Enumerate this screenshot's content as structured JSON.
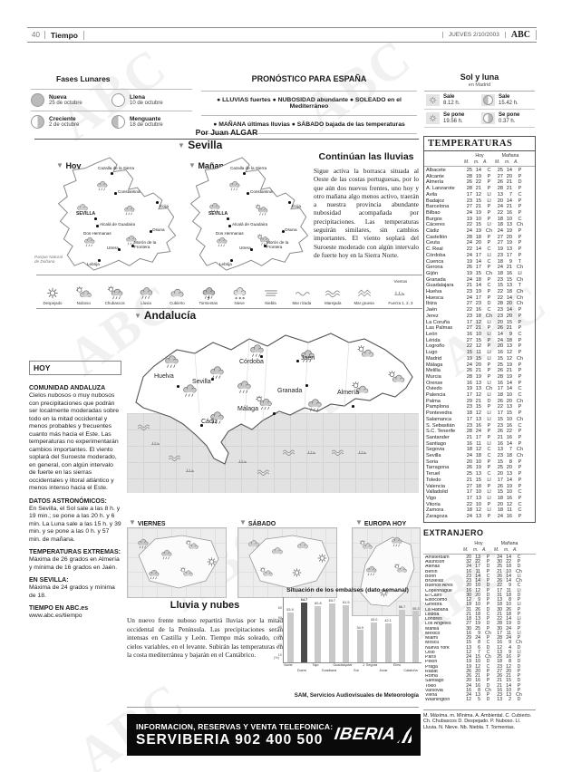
{
  "header": {
    "page_number": "40",
    "section": "Tiempo",
    "date": "JUEVES 2/10/2003",
    "brand": "ABC"
  },
  "lunar": {
    "title": "Fases Lunares",
    "phases": [
      {
        "name": "Nueva",
        "date": "25 de octubre"
      },
      {
        "name": "Llena",
        "date": "10 de octubre"
      },
      {
        "name": "Creciente",
        "date": "2 de octubre"
      },
      {
        "name": "Menguante",
        "date": "18 de octubre"
      }
    ]
  },
  "forecast": {
    "title": "PRONÓSTICO PARA ESPAÑA",
    "line1": "● LLUVIAS fuertes  ● NUBOSIDAD abundante  ● SOLEADO en el Mediterráneo",
    "line2": "● MAÑANA últimas lluvias  ● SÁBADO bajada de las temperaturas"
  },
  "sun_moon": {
    "title": "Sol y luna",
    "subtitle": "en Madrid",
    "sun_rise_label": "Sale",
    "sun_rise": "8.12 h.",
    "moon_rise_label": "Sale",
    "moon_rise": "15.42 h.",
    "sun_set_label": "Se pone",
    "sun_set": "19.56 h.",
    "moon_set_label": "Se pone",
    "moon_set": "0.37 h."
  },
  "byline": "Por Juan ALGAR",
  "sevilla": {
    "title": "Sevilla",
    "today_label": "Hoy",
    "tomorrow_label": "Mañana",
    "cities": [
      "Cazalla de la Sierra",
      "Constantina",
      "SEVILLA",
      "Alcalá de Guadaira",
      "Dos Hermanas",
      "Écija",
      "Osuna",
      "Morón de la Frontera",
      "Utrera",
      "Lebrija"
    ],
    "park_label": "Parque Natural de Doñana"
  },
  "article": {
    "title": "Continúan las lluvias",
    "body": "Sigue activa la borrasca situada al Oeste de las costas portuguesas, por lo que aún dos nuevos frentes, uno hoy y otro mañana algo menos activo, traerán a nuestra provincia abundante nubosidad acompañada por precipitaciones. Las temperaturas seguirán similares, sin cambios importantes. El viento soplará del Suroeste moderado con algún intervalo de fuerte hoy en la Sierra Norte."
  },
  "legend": {
    "items": [
      "Despejado",
      "Nuboso",
      "Chubascos",
      "Lluvia",
      "Cubierto",
      "Tormentas",
      "Nieve",
      "Niebla",
      "Mar rizada",
      "Marejada",
      "Mar gruesa"
    ],
    "wind_top": "Vientos",
    "wind_label": "Fuerza 1, 2, 3"
  },
  "andalucia": {
    "title": "Andalucía",
    "cities": [
      "Huelva",
      "Sevilla",
      "Córdoba",
      "Jaén",
      "Granada",
      "Almería",
      "Cádiz",
      "Málaga"
    ]
  },
  "hoy_column": {
    "title": "HOY",
    "sections": [
      {
        "heading": "COMUNIDAD ANDALUZA",
        "body": "Cielos nubosos o muy nubosos con precipitaciones que podrán ser localmente moderadas sobre todo en la mitad occidental y menos probables y frecuentes cuanto más hacia el Este. Las temperaturas no experimentarán cambios importantes. El viento soplará del Suroeste moderado, en general, con algún intervalo de fuerte en las sierras occidentales y litoral atlántico y menos intenso hacia el Este."
      },
      {
        "heading": "DATOS ASTRONÓMICOS:",
        "body": "En Sevilla, el Sol sale a las 8 h. y 19 min.; se pone a las 20 h. y 6 min. La Luna sale a las 15 h. y 39 min. y se pone a las 0 h. y 57 min. de mañana."
      },
      {
        "heading": "TEMPERATURAS EXTREMAS:",
        "body": "Máxima de 26 grados en Almería y mínima de 16 grados en Jaén."
      },
      {
        "heading": "EN SEVILLA:",
        "body": "Máxima de 24 grados y mínima de 18."
      },
      {
        "heading": "TIEMPO EN ABC.es",
        "body": "www.abc.es/tiempo"
      }
    ]
  },
  "mini_maps": [
    "VIERNES",
    "SÁBADO",
    "EUROPA HOY"
  ],
  "rain_article": {
    "title": "Lluvia y nubes",
    "body": "Un nuevo frente nuboso repartirá lluvias por la mitad occidental de la Península. Las precipitaciones serán intensas en Castilla y León. Tiempo más soleado, con cielos variables, en el levante. Subirán las temperaturas en la costa mediterránea y bajarán en el Cantábrico.",
    "credit": "SAM, Servicios Audiovisuales de Meteorología"
  },
  "chart_data": {
    "type": "bar",
    "title": "Situación de los embalses (dato semanal)",
    "categories": [
      "Norte",
      "Duero",
      "Tajo",
      "Guadiana",
      "Guadalquivir",
      "Sur",
      "J. Segura",
      "Júcar",
      "Ebro",
      "Cataluña"
    ],
    "values": [
      53.9,
      64.7,
      60.8,
      63.7,
      61.5,
      34.9,
      43.0,
      42.1,
      56.7,
      55.3
    ],
    "highlight_index": 1,
    "unit_label": "(%)",
    "yticks": [
      10,
      20,
      30,
      40,
      50,
      60
    ],
    "ylim": [
      0,
      70
    ],
    "xlabel": "",
    "ylabel": "%"
  },
  "temperaturas": {
    "title": "TEMPERATURAS",
    "group_today": "Hoy",
    "group_tomorrow": "Mañana",
    "cols": [
      "M.",
      "m.",
      "A.",
      "M.",
      "m.",
      "A."
    ],
    "rows": [
      [
        "Albacete",
        "25",
        "14",
        "C",
        "25",
        "14",
        "P"
      ],
      [
        "Alicante",
        "28",
        "19",
        "P",
        "27",
        "20",
        "P"
      ],
      [
        "Almería",
        "26",
        "22",
        "P",
        "26",
        "21",
        "D"
      ],
      [
        "A. Lanzarote",
        "28",
        "21",
        "P",
        "28",
        "21",
        "P"
      ],
      [
        "Ávila",
        "17",
        "12",
        "Ll",
        "13",
        "7",
        "C"
      ],
      [
        "Badajoz",
        "23",
        "15",
        "Ll",
        "20",
        "14",
        "P"
      ],
      [
        "Barcelona",
        "27",
        "21",
        "P",
        "24",
        "21",
        "P"
      ],
      [
        "Bilbao",
        "24",
        "19",
        "P",
        "22",
        "16",
        "P"
      ],
      [
        "Burgos",
        "19",
        "10",
        "P",
        "18",
        "10",
        "C"
      ],
      [
        "Cáceres",
        "22",
        "15",
        "Ll",
        "18",
        "13",
        "Ch"
      ],
      [
        "Cádiz",
        "24",
        "19",
        "Ch",
        "24",
        "19",
        "P"
      ],
      [
        "Castellón",
        "28",
        "18",
        "P",
        "27",
        "20",
        "P"
      ],
      [
        "Ceuta",
        "24",
        "20",
        "P",
        "27",
        "19",
        "P"
      ],
      [
        "C. Real",
        "22",
        "14",
        "C",
        "19",
        "13",
        "P"
      ],
      [
        "Córdoba",
        "24",
        "17",
        "Ll",
        "23",
        "17",
        "P"
      ],
      [
        "Cuenca",
        "19",
        "14",
        "C",
        "18",
        "9",
        "T"
      ],
      [
        "Gerona",
        "26",
        "17",
        "P",
        "24",
        "21",
        "Ch"
      ],
      [
        "Gijón",
        "19",
        "15",
        "Ch",
        "18",
        "16",
        "Ll"
      ],
      [
        "Granada",
        "24",
        "18",
        "P",
        "23",
        "15",
        "Ch"
      ],
      [
        "Guadalajara",
        "21",
        "14",
        "C",
        "15",
        "13",
        "T"
      ],
      [
        "Huelva",
        "23",
        "19",
        "P",
        "22",
        "18",
        "Ch"
      ],
      [
        "Huesca",
        "24",
        "17",
        "P",
        "22",
        "14",
        "Ch"
      ],
      [
        "Ibiza",
        "27",
        "23",
        "D",
        "28",
        "20",
        "Ch"
      ],
      [
        "Jaén",
        "22",
        "16",
        "C",
        "23",
        "14",
        "P"
      ],
      [
        "Jerez",
        "23",
        "18",
        "Ch",
        "23",
        "20",
        "P"
      ],
      [
        "La Coruña",
        "17",
        "12",
        "Ll",
        "20",
        "15",
        "P"
      ],
      [
        "Las Palmas",
        "27",
        "21",
        "P",
        "26",
        "21",
        "P"
      ],
      [
        "León",
        "16",
        "10",
        "Ll",
        "14",
        "9",
        "C"
      ],
      [
        "Lérida",
        "27",
        "15",
        "P",
        "24",
        "18",
        "P"
      ],
      [
        "Logroño",
        "22",
        "12",
        "P",
        "20",
        "13",
        "P"
      ],
      [
        "Lugo",
        "15",
        "11",
        "Ll",
        "16",
        "12",
        "P"
      ],
      [
        "Madrid",
        "19",
        "15",
        "Ll",
        "15",
        "12",
        "Ch"
      ],
      [
        "Málaga",
        "24",
        "20",
        "P",
        "25",
        "19",
        "P"
      ],
      [
        "Melilla",
        "26",
        "21",
        "P",
        "26",
        "21",
        "P"
      ],
      [
        "Murcia",
        "28",
        "19",
        "P",
        "28",
        "19",
        "P"
      ],
      [
        "Orense",
        "16",
        "13",
        "Ll",
        "16",
        "14",
        "P"
      ],
      [
        "Oviedo",
        "19",
        "13",
        "Ch",
        "17",
        "14",
        "C"
      ],
      [
        "Palencia",
        "17",
        "12",
        "Ll",
        "18",
        "10",
        "C"
      ],
      [
        "Palma",
        "29",
        "21",
        "D",
        "26",
        "20",
        "Ch"
      ],
      [
        "Pamplona",
        "23",
        "15",
        "P",
        "22",
        "13",
        "P"
      ],
      [
        "Pontevedra",
        "18",
        "12",
        "Ll",
        "17",
        "15",
        "P"
      ],
      [
        "Salamanca",
        "17",
        "13",
        "Ll",
        "15",
        "10",
        "Ch"
      ],
      [
        "S. Sebastián",
        "23",
        "16",
        "P",
        "23",
        "16",
        "C"
      ],
      [
        "S.C. Tenerife",
        "28",
        "24",
        "P",
        "26",
        "22",
        "P"
      ],
      [
        "Santander",
        "21",
        "17",
        "P",
        "21",
        "16",
        "P"
      ],
      [
        "Santiago",
        "16",
        "11",
        "Ll",
        "16",
        "14",
        "P"
      ],
      [
        "Segovia",
        "18",
        "12",
        "C",
        "13",
        "7",
        "Ch"
      ],
      [
        "Sevilla",
        "24",
        "18",
        "C",
        "23",
        "18",
        "Ch"
      ],
      [
        "Soria",
        "20",
        "10",
        "P",
        "15",
        "8",
        "P"
      ],
      [
        "Tarragona",
        "26",
        "19",
        "P",
        "25",
        "20",
        "P"
      ],
      [
        "Teruel",
        "25",
        "13",
        "C",
        "20",
        "13",
        "P"
      ],
      [
        "Toledo",
        "21",
        "15",
        "Ll",
        "17",
        "14",
        "P"
      ],
      [
        "Valencia",
        "27",
        "18",
        "P",
        "26",
        "19",
        "P"
      ],
      [
        "Valladolid",
        "17",
        "10",
        "Ll",
        "15",
        "10",
        "C"
      ],
      [
        "Vigo",
        "17",
        "13",
        "Ll",
        "18",
        "16",
        "P"
      ],
      [
        "Vitoria",
        "22",
        "10",
        "P",
        "20",
        "12",
        "C"
      ],
      [
        "Zamora",
        "18",
        "12",
        "Ll",
        "18",
        "11",
        "C"
      ],
      [
        "Zaragoza",
        "24",
        "13",
        "P",
        "24",
        "16",
        "P"
      ]
    ]
  },
  "extranjero": {
    "title": "EXTRANJERO",
    "group_today": "Hoy",
    "group_tomorrow": "Mañana",
    "cols": [
      "M.",
      "m.",
      "A.",
      "M.",
      "m.",
      "A."
    ],
    "rows": [
      [
        "Amsterdam",
        "20",
        "13",
        "P",
        "24",
        "14",
        "C"
      ],
      [
        "Asunción",
        "32",
        "22",
        "P",
        "30",
        "22",
        "P"
      ],
      [
        "Atenas",
        "24",
        "17",
        "D",
        "25",
        "18",
        "D"
      ],
      [
        "Berlín",
        "16",
        "11",
        "P",
        "21",
        "10",
        "Ch"
      ],
      [
        "Bonn",
        "23",
        "14",
        "C",
        "26",
        "14",
        "Ll"
      ],
      [
        "Bruselas",
        "23",
        "14",
        "P",
        "26",
        "14",
        "Ch"
      ],
      [
        "Buenos Aires",
        "20",
        "10",
        "D",
        "22",
        "9",
        "C"
      ],
      [
        "Copenhague",
        "16",
        "12",
        "P",
        "17",
        "11",
        "Ll"
      ],
      [
        "El Cairo",
        "30",
        "20",
        "D",
        "31",
        "18",
        "D"
      ],
      [
        "Estocolmo",
        "12",
        "9",
        "P",
        "13",
        "8",
        "P"
      ],
      [
        "Ginebra",
        "19",
        "10",
        "P",
        "18",
        "10",
        "Ll"
      ],
      [
        "La Habana",
        "31",
        "26",
        "D",
        "30",
        "26",
        "P"
      ],
      [
        "Lisboa",
        "21",
        "18",
        "C",
        "21",
        "18",
        "P"
      ],
      [
        "Londres",
        "18",
        "13",
        "P",
        "22",
        "14",
        "Ll"
      ],
      [
        "Los Ángeles",
        "27",
        "19",
        "D",
        "28",
        "19",
        "D"
      ],
      [
        "Manila",
        "30",
        "25",
        "P",
        "30",
        "24",
        "P"
      ],
      [
        "México",
        "16",
        "9",
        "Ch",
        "17",
        "11",
        "Ll"
      ],
      [
        "Miami",
        "29",
        "24",
        "P",
        "28",
        "24",
        "P"
      ],
      [
        "Moscú",
        "15",
        "8",
        "C",
        "16",
        "9",
        "Ch"
      ],
      [
        "Nueva York",
        "13",
        "6",
        "D",
        "12",
        "4",
        "D"
      ],
      [
        "Oslo",
        "12",
        "7",
        "C",
        "13",
        "9",
        "Ll"
      ],
      [
        "París",
        "24",
        "15",
        "Ch",
        "25",
        "16",
        "P"
      ],
      [
        "Pekín",
        "19",
        "10",
        "D",
        "18",
        "8",
        "D"
      ],
      [
        "Praga",
        "19",
        "12",
        "C",
        "23",
        "12",
        "D"
      ],
      [
        "Rabat",
        "26",
        "20",
        "P",
        "27",
        "20",
        "P"
      ],
      [
        "Roma",
        "26",
        "21",
        "P",
        "26",
        "21",
        "P"
      ],
      [
        "Santiago",
        "20",
        "16",
        "P",
        "21",
        "15",
        "D"
      ],
      [
        "Tokio",
        "24",
        "16",
        "D",
        "21",
        "14",
        "P"
      ],
      [
        "Varsovia",
        "16",
        "8",
        "Ch",
        "16",
        "10",
        "P"
      ],
      [
        "Viena",
        "24",
        "13",
        "P",
        "23",
        "13",
        "Ch"
      ],
      [
        "Washington",
        "12",
        "5",
        "D",
        "13",
        "2",
        "D"
      ]
    ]
  },
  "abbrev": "M. Máxima. m. Mínima. A. Ambiental. C. Cubierto. Ch. Chubascos D. Despejado. P. Nuboso. Ll. Lluvia. N. Nieve. Nb. Niebla. T. Tormentas.",
  "ad": {
    "line1": "INFORMACION, RESERVAS Y VENTA TELEFONICA:",
    "line2": "SERVIBERIA 902 400 500",
    "brand": "IBERIA"
  }
}
